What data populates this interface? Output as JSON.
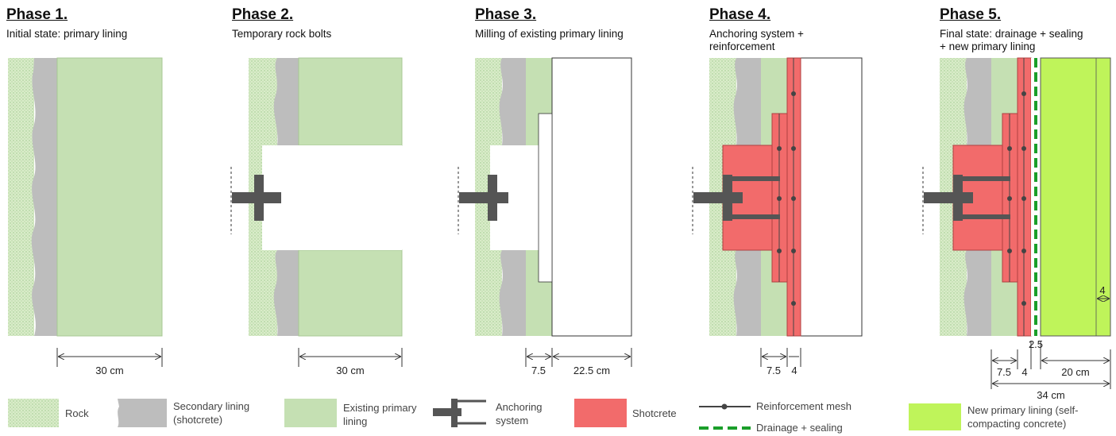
{
  "phases": [
    {
      "title": "Phase 1.",
      "subtitle": "Initial state: primary lining"
    },
    {
      "title": "Phase 2.",
      "subtitle": "Temporary rock bolts"
    },
    {
      "title": "Phase 3.",
      "subtitle": "Milling of existing primary lining"
    },
    {
      "title": "Phase 4.",
      "subtitle": "Anchoring system + reinforcement"
    },
    {
      "title": "Phase 5.",
      "subtitle": "Final state: drainage + sealing + new primary lining"
    }
  ],
  "dimensions": {
    "p1_width": "30 cm",
    "p2_width": "30 cm",
    "p3_a": "7.5",
    "p3_b": "22.5 cm",
    "p4_a": "7.5",
    "p4_b": "4",
    "p5_top": "2.5",
    "p5_a": "7.5",
    "p5_b": "4",
    "p5_c": "20 cm",
    "p5_total": "34 cm",
    "p5_side": "4"
  },
  "legend": {
    "rock": "Rock",
    "secondary_lining": "Secondary lining (shotcrete)",
    "existing_primary": "Existing primary lining",
    "anchoring": "Anchoring system",
    "shotcrete": "Shotcrete",
    "mesh": "Reinforcement mesh",
    "drainage": "Drainage + sealing",
    "new_primary": "New primary lining (self-compacting concrete)"
  },
  "colors": {
    "rock": "#d4e8c2",
    "secondary": "#bdbdbd",
    "existing": "#c5e0b3",
    "shotcrete": "#f26b6b",
    "new_primary": "#bff45a",
    "anchor": "#555555",
    "drainage": "#1a9e2a"
  }
}
